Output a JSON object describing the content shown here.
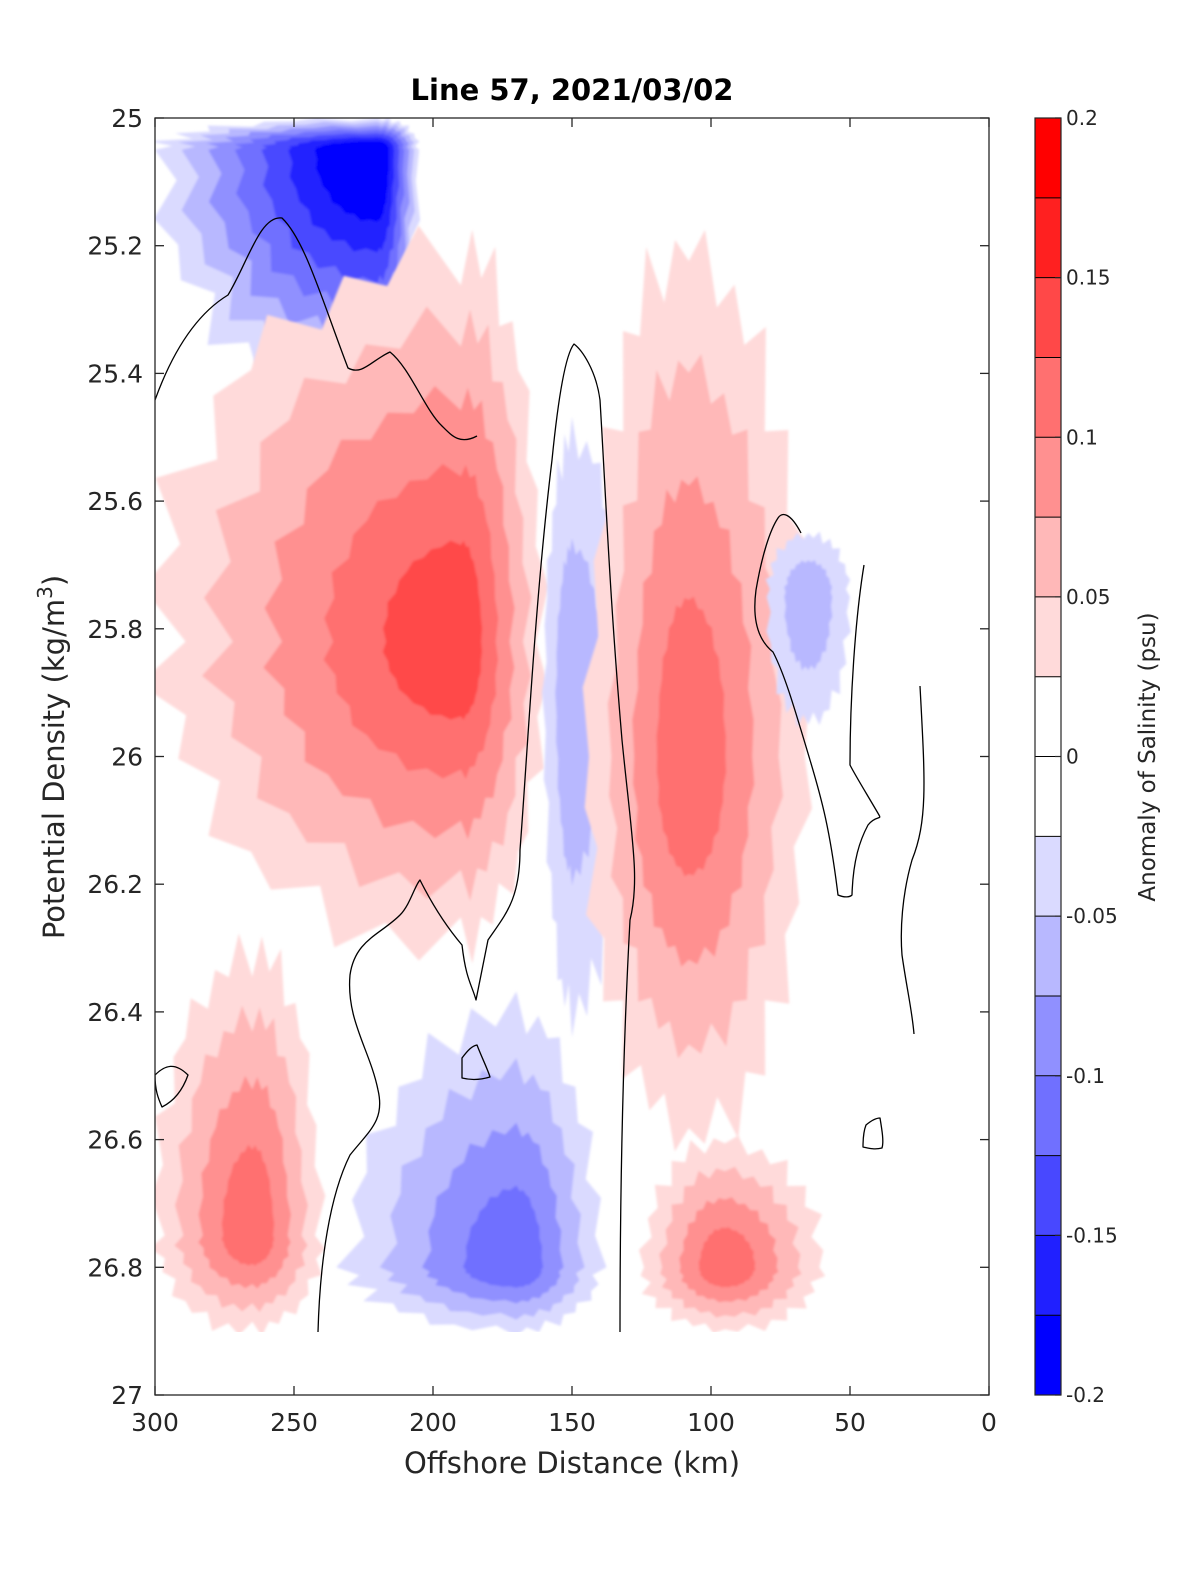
{
  "chart_data": {
    "type": "heatmap",
    "subtype": "filled-contour",
    "title": "Line 57, 2021/03/02",
    "xlabel": "Offshore Distance (km)",
    "ylabel_main": "Potential Density (kg/m",
    "ylabel_sup": "3",
    "ylabel_tail": ")",
    "xlim": [
      300,
      0
    ],
    "ylim": [
      25,
      27
    ],
    "y_direction": "reversed",
    "x_ticks": [
      "300",
      "250",
      "200",
      "150",
      "100",
      "50",
      "0"
    ],
    "x_tick_values": [
      300,
      250,
      200,
      150,
      100,
      50,
      0
    ],
    "y_ticks": [
      "25",
      "25.2",
      "25.4",
      "25.6",
      "25.8",
      "26",
      "26.2",
      "26.4",
      "26.6",
      "26.8",
      "27"
    ],
    "y_tick_values": [
      25,
      25.2,
      25.4,
      25.6,
      25.8,
      26,
      26.2,
      26.4,
      26.6,
      26.8,
      27
    ],
    "colorbar": {
      "label": "Anomaly of Salinity (psu)",
      "range": [
        -0.2,
        0.2
      ],
      "tick_labels": [
        "0.2",
        "0.15",
        "0.1",
        "0.05",
        "0",
        "-0.05",
        "-0.1",
        "-0.15",
        "-0.2"
      ],
      "tick_values": [
        0.2,
        0.15,
        0.1,
        0.05,
        0,
        -0.05,
        -0.1,
        -0.15,
        -0.2
      ],
      "level_colors": [
        "#0000ff",
        "#2020ff",
        "#4848ff",
        "#7070ff",
        "#9090ff",
        "#b8b8ff",
        "#dadaff",
        "#ffffff",
        "#ffffff",
        "#ffdada",
        "#ffb8b8",
        "#ff9090",
        "#ff7070",
        "#ff4848",
        "#ff2020",
        "#ff0000"
      ]
    },
    "contour_line": {
      "level": 0,
      "color": "#000000"
    },
    "features": [
      {
        "sign": "negative",
        "x_range": [
          300,
          205
        ],
        "y_range": [
          25.0,
          25.45
        ],
        "max_abs_anomaly": 0.2,
        "peak_x": 220,
        "peak_y": 25.05
      },
      {
        "sign": "positive",
        "x_range": [
          300,
          160
        ],
        "y_range": [
          25.2,
          26.3
        ],
        "max_abs_anomaly": 0.15,
        "peak_x": 190,
        "peak_y": 25.82
      },
      {
        "sign": "negative",
        "x_range": [
          160,
          130
        ],
        "y_range": [
          25.5,
          26.4
        ],
        "max_abs_anomaly": 0.05,
        "peak_x": 150,
        "peak_y": 25.9
      },
      {
        "sign": "positive",
        "x_range": [
          145,
          65
        ],
        "y_range": [
          25.2,
          26.6
        ],
        "max_abs_anomaly": 0.1,
        "peak_x": 108,
        "peak_y": 26.0
      },
      {
        "sign": "negative",
        "x_range": [
          80,
          50
        ],
        "y_range": [
          25.65,
          25.95
        ],
        "max_abs_anomaly": 0.05,
        "peak_x": 65,
        "peak_y": 25.75
      },
      {
        "sign": "positive",
        "x_range": [
          300,
          240
        ],
        "y_range": [
          26.3,
          26.9
        ],
        "max_abs_anomaly": 0.1,
        "peak_x": 265,
        "peak_y": 26.75
      },
      {
        "sign": "negative",
        "x_range": [
          230,
          140
        ],
        "y_range": [
          26.4,
          26.9
        ],
        "max_abs_anomaly": 0.1,
        "peak_x": 170,
        "peak_y": 26.8
      },
      {
        "sign": "positive",
        "x_range": [
          125,
          60
        ],
        "y_range": [
          26.6,
          26.9
        ],
        "max_abs_anomaly": 0.1,
        "peak_x": 95,
        "peak_y": 26.8
      }
    ]
  }
}
